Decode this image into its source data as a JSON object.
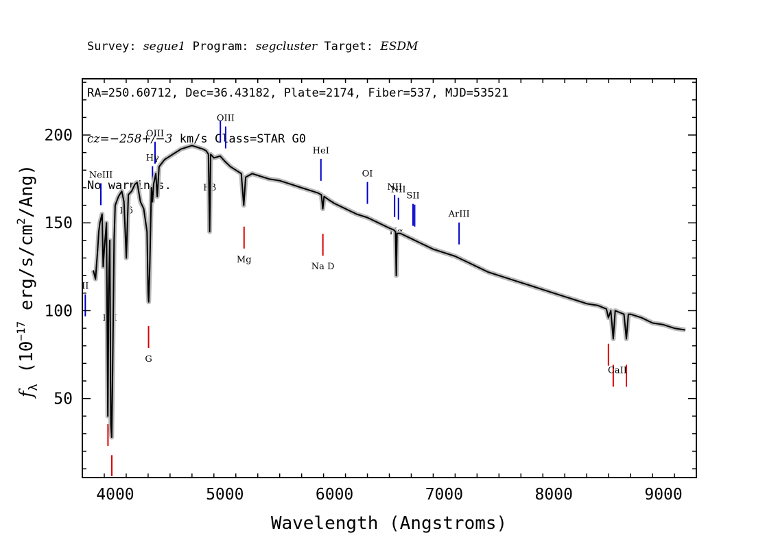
{
  "header": {
    "survey_label": "Survey:",
    "survey": "segue1",
    "program_label": "Program:",
    "program": "segcluster",
    "target_label": "Target:",
    "target": "ESDM",
    "line2": "RA=250.60712, Dec=36.43182, Plate=2174, Fiber=537, MJD=53521",
    "cz_label": "cz=",
    "cz_value": "−258+/−3",
    "cz_rest": " km/s Class=STAR G0",
    "line4": "No warnings."
  },
  "chart_data": {
    "type": "line",
    "xlabel": "Wavelength (Angstroms)",
    "ylabel_parts": {
      "f": "f",
      "sub": "λ",
      "a": " (10",
      "sup1": "−17",
      "b": " erg/s/cm",
      "sup2": "2",
      "c": "/Ang)"
    },
    "xlim": [
      3700,
      9300
    ],
    "ylim": [
      5,
      232
    ],
    "xticks": [
      4000,
      5000,
      6000,
      7000,
      8000,
      9000
    ],
    "xtick_labels": [
      "4000",
      "5000",
      "6000",
      "7000",
      "8000",
      "9000"
    ],
    "yticks": [
      50,
      100,
      150,
      200
    ],
    "ytick_labels": [
      "50",
      "100",
      "150",
      "200"
    ],
    "series": [
      {
        "color": "#000000",
        "error_color": "#bbbbbb",
        "x": [
          3800,
          3820,
          3840,
          3850,
          3860,
          3880,
          3890,
          3900,
          3920,
          3933,
          3940,
          3950,
          3960,
          3968,
          3975,
          3990,
          4000,
          4030,
          4060,
          4080,
          4101,
          4120,
          4150,
          4180,
          4200,
          4230,
          4260,
          4290,
          4300,
          4305,
          4315,
          4330,
          4340,
          4350,
          4370,
          4383,
          4400,
          4450,
          4500,
          4550,
          4600,
          4650,
          4700,
          4750,
          4800,
          4830,
          4850,
          4861,
          4870,
          4900,
          4957,
          5000,
          5050,
          5100,
          5150,
          5172,
          5190,
          5250,
          5300,
          5400,
          5500,
          5600,
          5700,
          5800,
          5850,
          5880,
          5893,
          5905,
          5950,
          6000,
          6100,
          6200,
          6300,
          6400,
          6500,
          6540,
          6556,
          6563,
          6570,
          6600,
          6700,
          6800,
          6900,
          7000,
          7100,
          7200,
          7300,
          7400,
          7500,
          7600,
          7700,
          7800,
          7900,
          8000,
          8100,
          8200,
          8300,
          8400,
          8480,
          8498,
          8520,
          8542,
          8560,
          8600,
          8640,
          8662,
          8680,
          8700,
          8800,
          8900,
          9000,
          9100,
          9200
        ],
        "y": [
          123,
          118,
          135,
          145,
          150,
          155,
          125,
          135,
          150,
          40,
          112,
          140,
          35,
          28,
          60,
          140,
          160,
          165,
          168,
          162,
          130,
          166,
          168,
          172,
          173,
          162,
          158,
          145,
          110,
          105,
          125,
          170,
          162,
          172,
          178,
          165,
          182,
          186,
          188,
          190,
          192,
          193,
          194,
          193,
          192,
          191,
          189,
          145,
          189,
          187,
          188,
          185,
          182,
          180,
          178,
          160,
          176,
          178,
          177,
          175,
          174,
          172,
          170,
          168,
          167,
          166,
          158,
          165,
          163,
          161,
          158,
          155,
          153,
          150,
          147,
          146,
          145,
          120,
          144,
          144,
          141,
          138,
          135,
          133,
          131,
          128,
          125,
          122,
          120,
          118,
          116,
          114,
          112,
          110,
          108,
          106,
          104,
          103,
          101,
          96,
          100,
          84,
          100,
          99,
          98,
          84,
          98,
          98,
          96,
          93,
          92,
          90,
          89
        ]
      }
    ],
    "line_markers": [
      {
        "label": "Hα",
        "wavelength": 6563,
        "color": "#0000cc",
        "group": "emission"
      },
      {
        "label": "Hβ",
        "wavelength": 4861,
        "color": "#0000cc",
        "group": "emission"
      },
      {
        "label": "Hγ",
        "wavelength": 4340,
        "color": "#0000cc",
        "group": "emission"
      },
      {
        "label": "Hδ",
        "wavelength": 4102,
        "color": "#0000cc",
        "group": "emission"
      },
      {
        "label": "OIII",
        "wavelength": 4363,
        "color": "#0000cc",
        "group": "emission"
      },
      {
        "label": "OIII",
        "wavelength": 4959,
        "color": "#0000cc",
        "group": "emission"
      },
      {
        "label": "OIII",
        "wavelength": 5007,
        "color": "#0000cc",
        "group": "emission"
      },
      {
        "label": "NeIII",
        "wavelength": 3869,
        "color": "#0000cc",
        "group": "emission"
      },
      {
        "label": "OII",
        "wavelength": 3727,
        "color": "#0000cc",
        "group": "emission"
      },
      {
        "label": "HeI",
        "wavelength": 5876,
        "color": "#0000cc",
        "group": "emission"
      },
      {
        "label": "OI",
        "wavelength": 6300,
        "color": "#0000cc",
        "group": "emission"
      },
      {
        "label": "NII",
        "wavelength": 6548,
        "color": "#0000cc",
        "group": "emission"
      },
      {
        "label": "NII",
        "wavelength": 6583,
        "color": "#0000cc",
        "group": "emission"
      },
      {
        "label": "SII",
        "wavelength": 6716,
        "color": "#0000cc",
        "group": "emission"
      },
      {
        "label": "SII",
        "wavelength": 6731,
        "color": "#0000cc",
        "group": "emission"
      },
      {
        "label": "ArIII",
        "wavelength": 7136,
        "color": "#0000cc",
        "group": "emission"
      },
      {
        "label": "K",
        "wavelength": 3934,
        "color": "#dd0000",
        "group": "absorption"
      },
      {
        "label": "H",
        "wavelength": 3969,
        "color": "#dd0000",
        "group": "absorption"
      },
      {
        "label": "G",
        "wavelength": 4304,
        "color": "#dd0000",
        "group": "absorption"
      },
      {
        "label": "Mg",
        "wavelength": 5175,
        "color": "#dd0000",
        "group": "absorption"
      },
      {
        "label": "Na D",
        "wavelength": 5894,
        "color": "#dd0000",
        "group": "absorption"
      },
      {
        "label": "CaII",
        "wavelength": 8498,
        "color": "#dd0000",
        "group": "absorption"
      },
      {
        "label": "CaII",
        "wavelength": 8542,
        "color": "#dd0000",
        "group": "absorption"
      },
      {
        "label": "CaII",
        "wavelength": 8662,
        "color": "#dd0000",
        "group": "absorption"
      }
    ],
    "marker_texts": [
      {
        "text": "Hα",
        "wavelength": 6563
      },
      {
        "text": "Hβ",
        "wavelength": 4861
      },
      {
        "text": "Hγ",
        "wavelength": 4340
      },
      {
        "text": "Hδ",
        "wavelength": 4102
      },
      {
        "text": "OIII",
        "wavelength": 4363
      },
      {
        "text": "OIII",
        "wavelength": 5007
      },
      {
        "text": "NeIII",
        "wavelength": 3869
      },
      {
        "text": "II",
        "wavelength": 3727
      },
      {
        "text": "HeI",
        "wavelength": 5876
      },
      {
        "text": "OI",
        "wavelength": 6300
      },
      {
        "text": "NII",
        "wavelength": 6548
      },
      {
        "text": "NII",
        "wavelength": 6583
      },
      {
        "text": "SII",
        "wavelength": 6716
      },
      {
        "text": "ArIII",
        "wavelength": 7136
      },
      {
        "text": "KH",
        "wavelength": 3951
      },
      {
        "text": "G",
        "wavelength": 4304
      },
      {
        "text": "Mg",
        "wavelength": 5175
      },
      {
        "text": "Na D",
        "wavelength": 5894
      },
      {
        "text": "CaII",
        "wavelength": 8580
      }
    ],
    "grid": false,
    "legend": "none"
  }
}
